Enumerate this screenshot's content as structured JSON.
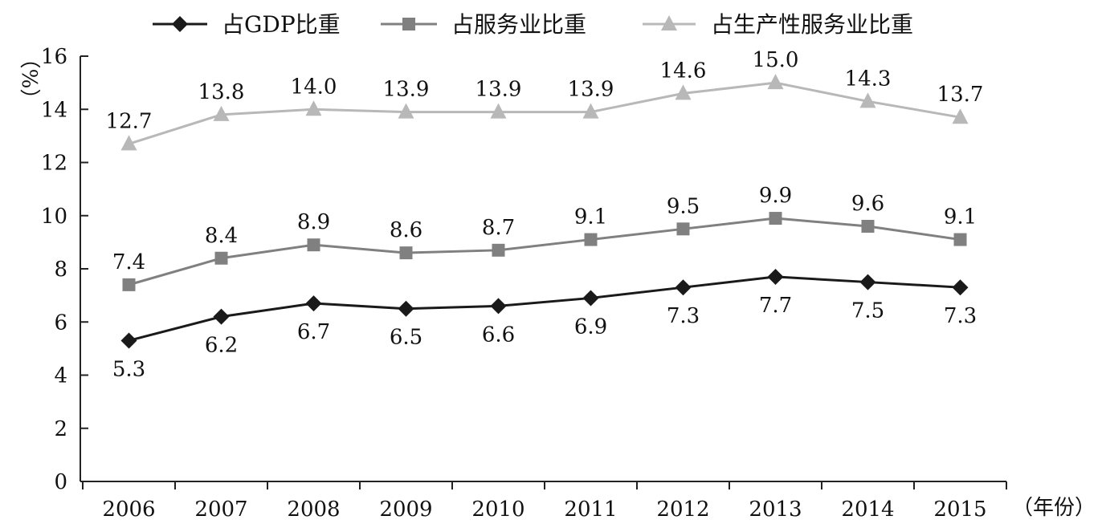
{
  "chart_data": {
    "type": "line",
    "categories": [
      "2006",
      "2007",
      "2008",
      "2009",
      "2010",
      "2011",
      "2012",
      "2013",
      "2014",
      "2015"
    ],
    "series": [
      {
        "name": "占GDP比重",
        "values": [
          5.3,
          6.2,
          6.7,
          6.5,
          6.6,
          6.9,
          7.3,
          7.7,
          7.5,
          7.3
        ],
        "color": "#1a1a1a",
        "marker": "diamond",
        "label_position": "below"
      },
      {
        "name": "占服务业比重",
        "values": [
          7.4,
          8.4,
          8.9,
          8.6,
          8.7,
          9.1,
          9.5,
          9.9,
          9.6,
          9.1
        ],
        "color": "#808080",
        "marker": "square",
        "label_position": "above"
      },
      {
        "name": "占生产性服务业比重",
        "values": [
          12.7,
          13.8,
          14.0,
          13.9,
          13.9,
          13.9,
          14.6,
          15.0,
          14.3,
          13.7
        ],
        "color": "#b8b8b8",
        "marker": "triangle",
        "label_position": "above"
      }
    ],
    "ylabel": "（%）",
    "xlabel": "（年份）",
    "ylim": [
      0,
      16
    ],
    "yticks": [
      "0",
      "2",
      "4",
      "6",
      "8",
      "10",
      "12",
      "14",
      "16"
    ],
    "grid": false,
    "legend_position": "top"
  }
}
